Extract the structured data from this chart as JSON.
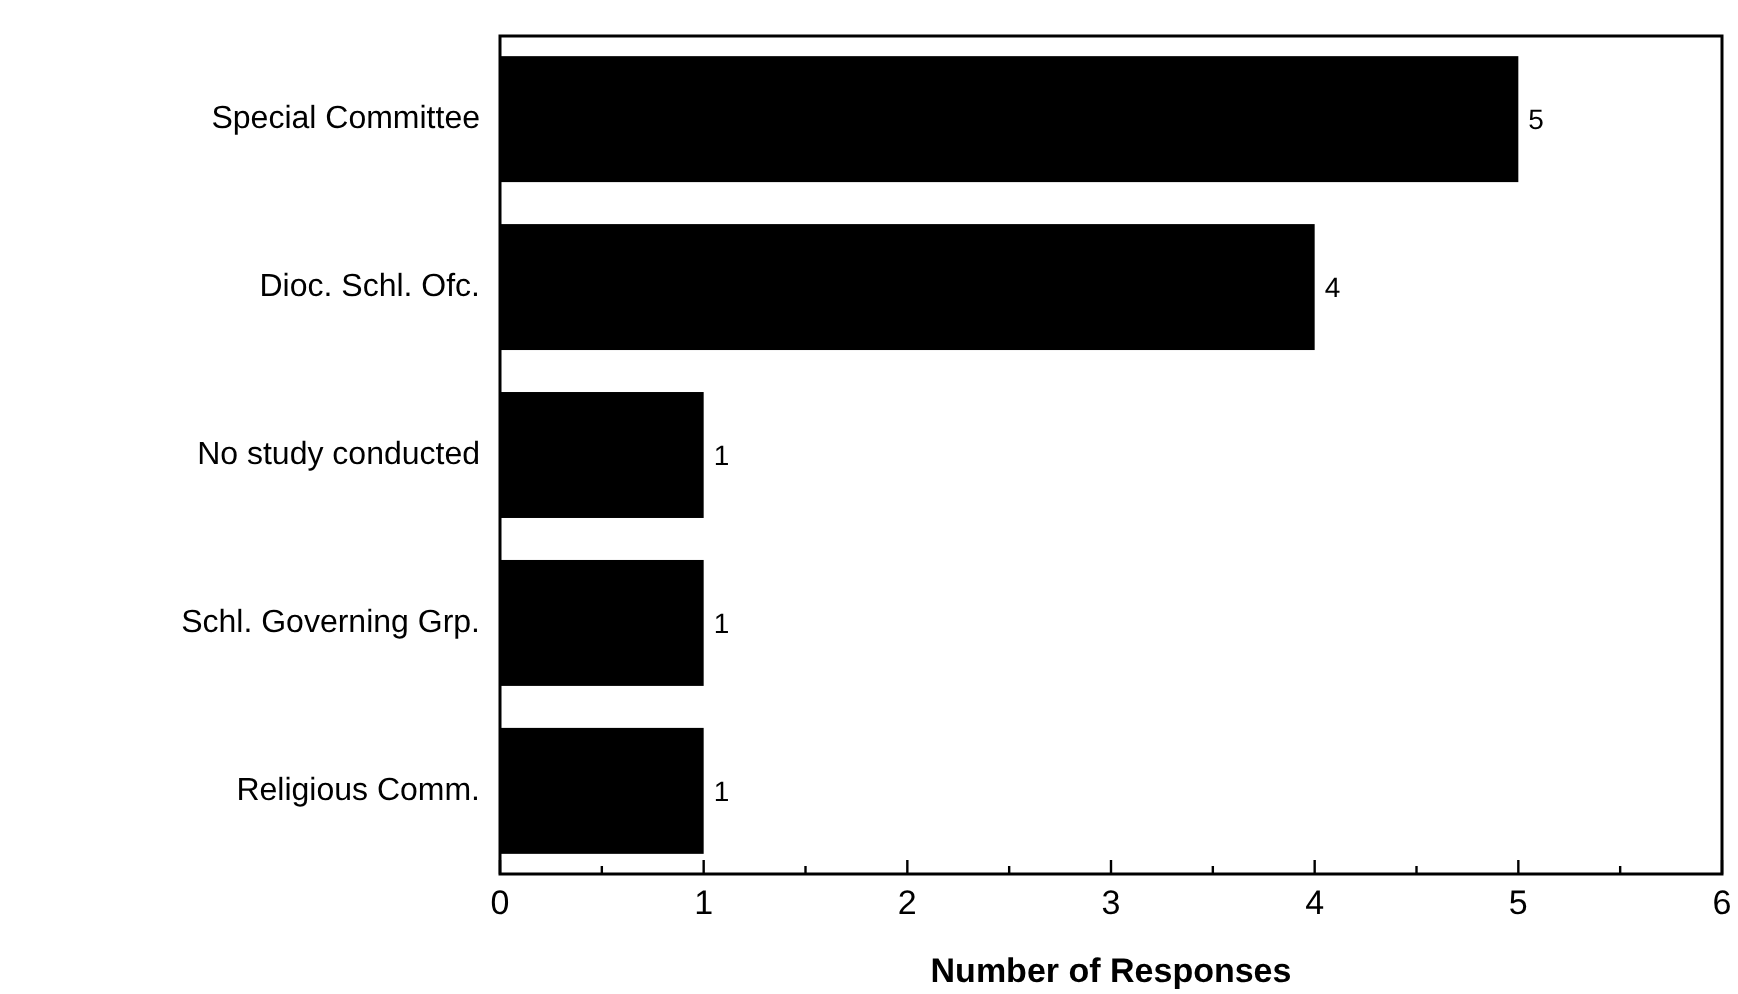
{
  "chart_data": {
    "type": "bar",
    "orientation": "horizontal",
    "xlabel": "Number of Responses",
    "categories": [
      "Special Committee",
      "Dioc. Schl. Ofc.",
      "No study conducted",
      "Schl. Governing Grp.",
      "Religious Comm."
    ],
    "values": [
      5,
      4,
      1,
      1,
      1
    ],
    "color": "#000000",
    "data_labels": true,
    "xlim": [
      0,
      6
    ],
    "xticks": [
      0,
      {
        "value": 0.5,
        "label": null
      },
      1,
      {
        "value": 1.5,
        "label": null
      },
      2,
      {
        "value": 2.5,
        "label": null
      },
      3,
      {
        "value": 3.5,
        "label": null
      },
      4,
      {
        "value": 4.5,
        "label": null
      },
      5,
      {
        "value": 5.5,
        "label": null
      },
      6
    ]
  }
}
